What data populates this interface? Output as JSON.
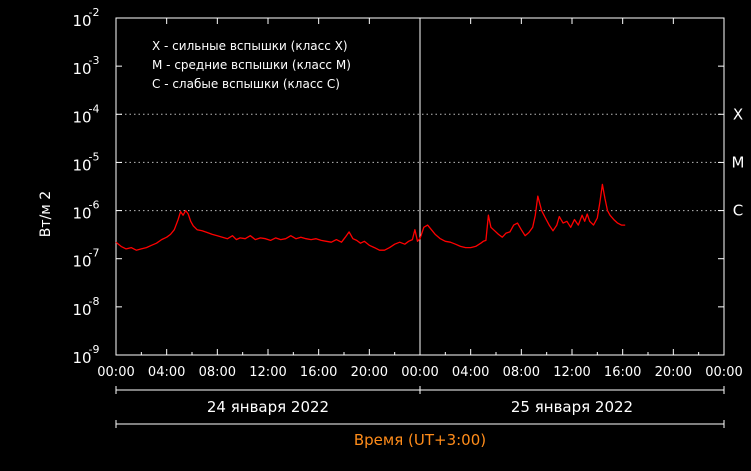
{
  "chart_data": {
    "type": "line",
    "ylabel": "Вт/м 2",
    "xlabel": "Время (UT+3:00)",
    "y_scale": "log",
    "ylim": [
      1e-09,
      0.01
    ],
    "y_ticks": [
      {
        "base": "10",
        "exp": "-2"
      },
      {
        "base": "10",
        "exp": "-3"
      },
      {
        "base": "10",
        "exp": "-4"
      },
      {
        "base": "10",
        "exp": "-5"
      },
      {
        "base": "10",
        "exp": "-6"
      },
      {
        "base": "10",
        "exp": "-7"
      },
      {
        "base": "10",
        "exp": "-8"
      },
      {
        "base": "10",
        "exp": "-9"
      }
    ],
    "x_tick_labels": [
      "00:00",
      "04:00",
      "08:00",
      "12:00",
      "16:00",
      "20:00",
      "00:00",
      "04:00",
      "08:00",
      "12:00",
      "16:00",
      "20:00",
      "00:00"
    ],
    "x_range_hours": [
      0,
      48
    ],
    "date_labels": [
      "24 января 2022",
      "25 января 2022"
    ],
    "day_separator_hour": 24,
    "class_levels": [
      {
        "label": "X",
        "value": 0.0001
      },
      {
        "label": "M",
        "value": 1e-05
      },
      {
        "label": "C",
        "value": 1e-06
      }
    ],
    "legend": [
      "X - сильные вспышки (класс X)",
      "M - средние вспышки (класс M)",
      "C - слабые вспышки (класс C)"
    ],
    "legend_position": "top-left",
    "grid": "dotted lines at class levels",
    "series": [
      {
        "color": "#ff0000",
        "points": [
          [
            0.0,
            2.2e-07
          ],
          [
            0.4,
            1.8e-07
          ],
          [
            0.8,
            1.6e-07
          ],
          [
            1.2,
            1.7e-07
          ],
          [
            1.6,
            1.5e-07
          ],
          [
            2.0,
            1.6e-07
          ],
          [
            2.4,
            1.7e-07
          ],
          [
            2.8,
            1.9e-07
          ],
          [
            3.2,
            2.1e-07
          ],
          [
            3.6,
            2.5e-07
          ],
          [
            4.0,
            2.8e-07
          ],
          [
            4.3,
            3.2e-07
          ],
          [
            4.6,
            4e-07
          ],
          [
            4.9,
            6.5e-07
          ],
          [
            5.1,
            9.5e-07
          ],
          [
            5.3,
            8e-07
          ],
          [
            5.5,
            1e-06
          ],
          [
            5.7,
            8.5e-07
          ],
          [
            5.9,
            6e-07
          ],
          [
            6.1,
            4.8e-07
          ],
          [
            6.4,
            4e-07
          ],
          [
            6.8,
            3.8e-07
          ],
          [
            7.2,
            3.5e-07
          ],
          [
            7.6,
            3.2e-07
          ],
          [
            8.0,
            3e-07
          ],
          [
            8.4,
            2.8e-07
          ],
          [
            8.8,
            2.6e-07
          ],
          [
            9.2,
            3e-07
          ],
          [
            9.5,
            2.5e-07
          ],
          [
            9.8,
            2.7e-07
          ],
          [
            10.2,
            2.6e-07
          ],
          [
            10.6,
            3e-07
          ],
          [
            11.0,
            2.5e-07
          ],
          [
            11.4,
            2.7e-07
          ],
          [
            11.8,
            2.6e-07
          ],
          [
            12.2,
            2.4e-07
          ],
          [
            12.6,
            2.7e-07
          ],
          [
            13.0,
            2.5e-07
          ],
          [
            13.4,
            2.6e-07
          ],
          [
            13.8,
            3e-07
          ],
          [
            14.2,
            2.6e-07
          ],
          [
            14.6,
            2.8e-07
          ],
          [
            15.0,
            2.6e-07
          ],
          [
            15.4,
            2.5e-07
          ],
          [
            15.8,
            2.6e-07
          ],
          [
            16.2,
            2.4e-07
          ],
          [
            16.6,
            2.3e-07
          ],
          [
            17.0,
            2.2e-07
          ],
          [
            17.4,
            2.5e-07
          ],
          [
            17.8,
            2.2e-07
          ],
          [
            18.1,
            2.8e-07
          ],
          [
            18.4,
            3.6e-07
          ],
          [
            18.7,
            2.6e-07
          ],
          [
            19.0,
            2.4e-07
          ],
          [
            19.3,
            2.1e-07
          ],
          [
            19.6,
            2.3e-07
          ],
          [
            20.0,
            1.9e-07
          ],
          [
            20.4,
            1.7e-07
          ],
          [
            20.8,
            1.5e-07
          ],
          [
            21.2,
            1.5e-07
          ],
          [
            21.6,
            1.7e-07
          ],
          [
            22.0,
            2e-07
          ],
          [
            22.4,
            2.2e-07
          ],
          [
            22.8,
            2e-07
          ],
          [
            23.1,
            2.3e-07
          ],
          [
            23.4,
            2.5e-07
          ],
          [
            23.6,
            4e-07
          ],
          [
            23.8,
            2.3e-07
          ],
          [
            24.0,
            2.6e-07
          ],
          [
            24.3,
            4.5e-07
          ],
          [
            24.6,
            5e-07
          ],
          [
            24.9,
            4e-07
          ],
          [
            25.2,
            3.2e-07
          ],
          [
            25.6,
            2.6e-07
          ],
          [
            26.0,
            2.3e-07
          ],
          [
            26.4,
            2.2e-07
          ],
          [
            26.8,
            2e-07
          ],
          [
            27.2,
            1.8e-07
          ],
          [
            27.6,
            1.7e-07
          ],
          [
            28.0,
            1.7e-07
          ],
          [
            28.4,
            1.8e-07
          ],
          [
            28.8,
            2.1e-07
          ],
          [
            29.0,
            2.3e-07
          ],
          [
            29.2,
            2.4e-07
          ],
          [
            29.4,
            8e-07
          ],
          [
            29.6,
            4.5e-07
          ],
          [
            29.9,
            3.8e-07
          ],
          [
            30.2,
            3.2e-07
          ],
          [
            30.5,
            2.8e-07
          ],
          [
            30.8,
            3.4e-07
          ],
          [
            31.1,
            3.6e-07
          ],
          [
            31.4,
            5e-07
          ],
          [
            31.7,
            5.5e-07
          ],
          [
            32.0,
            4e-07
          ],
          [
            32.3,
            3e-07
          ],
          [
            32.6,
            3.5e-07
          ],
          [
            32.9,
            4.5e-07
          ],
          [
            33.1,
            8e-07
          ],
          [
            33.3,
            2e-06
          ],
          [
            33.6,
            1e-06
          ],
          [
            33.9,
            7e-07
          ],
          [
            34.2,
            5e-07
          ],
          [
            34.5,
            3.8e-07
          ],
          [
            34.8,
            5e-07
          ],
          [
            35.0,
            7.5e-07
          ],
          [
            35.3,
            5.5e-07
          ],
          [
            35.6,
            6e-07
          ],
          [
            35.9,
            4.5e-07
          ],
          [
            36.2,
            6.5e-07
          ],
          [
            36.5,
            5e-07
          ],
          [
            36.8,
            8e-07
          ],
          [
            37.0,
            6e-07
          ],
          [
            37.2,
            8.5e-07
          ],
          [
            37.4,
            6e-07
          ],
          [
            37.7,
            5e-07
          ],
          [
            38.0,
            7e-07
          ],
          [
            38.2,
            1.5e-06
          ],
          [
            38.4,
            3.5e-06
          ],
          [
            38.6,
            1.8e-06
          ],
          [
            38.8,
            1e-06
          ],
          [
            39.0,
            8e-07
          ],
          [
            39.3,
            6.5e-07
          ],
          [
            39.6,
            5.5e-07
          ],
          [
            39.9,
            5e-07
          ],
          [
            40.2,
            5e-07
          ]
        ]
      }
    ]
  }
}
